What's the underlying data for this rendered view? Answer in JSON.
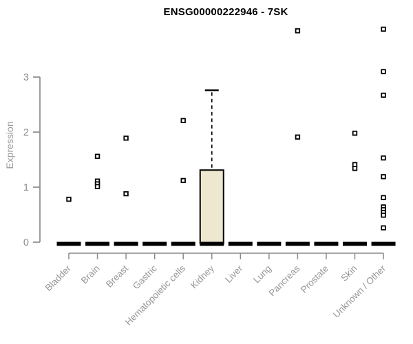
{
  "chart": {
    "title": "ENSG00000222946 - 7SK",
    "ylabel": "Expression"
  },
  "chart_data": {
    "type": "boxplot",
    "title": "ENSG00000222946 - 7SK",
    "xlabel": "",
    "ylabel": "Expression",
    "ylim": [
      0,
      4.05
    ],
    "yticks": [
      0,
      1,
      2,
      3
    ],
    "grid": false,
    "legend": "none",
    "categories": [
      "Bladder",
      "Brain",
      "Breast",
      "Gastric",
      "Hematopoietic cells",
      "Kidney",
      "Liver",
      "Lung",
      "Pancreas",
      "Prostate",
      "Skin",
      "Unknown / Other"
    ],
    "boxes": [
      {
        "category": "Bladder",
        "q1": 0,
        "median": 0,
        "q3": 0,
        "whisker_low": 0,
        "whisker_high": 0,
        "outliers": [
          0.78
        ]
      },
      {
        "category": "Brain",
        "q1": 0,
        "median": 0,
        "q3": 0,
        "whisker_low": 0,
        "whisker_high": 0,
        "outliers": [
          1.56,
          1.11,
          1.06,
          1.01
        ]
      },
      {
        "category": "Breast",
        "q1": 0,
        "median": 0,
        "q3": 0,
        "whisker_low": 0,
        "whisker_high": 0,
        "outliers": [
          1.89,
          0.88
        ]
      },
      {
        "category": "Gastric",
        "q1": 0,
        "median": 0,
        "q3": 0,
        "whisker_low": 0,
        "whisker_high": 0,
        "outliers": []
      },
      {
        "category": "Hematopoietic cells",
        "q1": 0,
        "median": 0,
        "q3": 0,
        "whisker_low": 0,
        "whisker_high": 0,
        "outliers": [
          2.21,
          1.12
        ]
      },
      {
        "category": "Kidney",
        "q1": 0,
        "median": 0,
        "q3": 1.31,
        "whisker_low": 0,
        "whisker_high": 2.76,
        "outliers": []
      },
      {
        "category": "Liver",
        "q1": 0,
        "median": 0,
        "q3": 0,
        "whisker_low": 0,
        "whisker_high": 0,
        "outliers": []
      },
      {
        "category": "Lung",
        "q1": 0,
        "median": 0,
        "q3": 0,
        "whisker_low": 0,
        "whisker_high": 0,
        "outliers": []
      },
      {
        "category": "Pancreas",
        "q1": 0,
        "median": 0,
        "q3": 0,
        "whisker_low": 0,
        "whisker_high": 0,
        "outliers": [
          3.84,
          1.91
        ]
      },
      {
        "category": "Prostate",
        "q1": 0,
        "median": 0,
        "q3": 0,
        "whisker_low": 0,
        "whisker_high": 0,
        "outliers": []
      },
      {
        "category": "Skin",
        "q1": 0,
        "median": 0,
        "q3": 0,
        "whisker_low": 0,
        "whisker_high": 0,
        "outliers": [
          1.98,
          1.41,
          1.34
        ]
      },
      {
        "category": "Unknown / Other",
        "q1": 0,
        "median": 0,
        "q3": 0,
        "whisker_low": 0,
        "whisker_high": 0,
        "outliers": [
          3.87,
          3.1,
          2.67,
          1.53,
          1.19,
          0.81,
          0.64,
          0.59,
          0.54,
          0.49,
          0.26
        ]
      }
    ],
    "colors": {
      "box_fill": "#ede8cf",
      "box_border": "#000000",
      "collapsed_bar": "#000000",
      "whisker": "#000000",
      "outlier_fill": "#ffffff",
      "outlier_border": "#000000",
      "axis": "#8a8a8a",
      "tick_label": "#8c8c8c",
      "category_label": "#969696",
      "title": "#000000",
      "background": "#ffffff"
    }
  }
}
